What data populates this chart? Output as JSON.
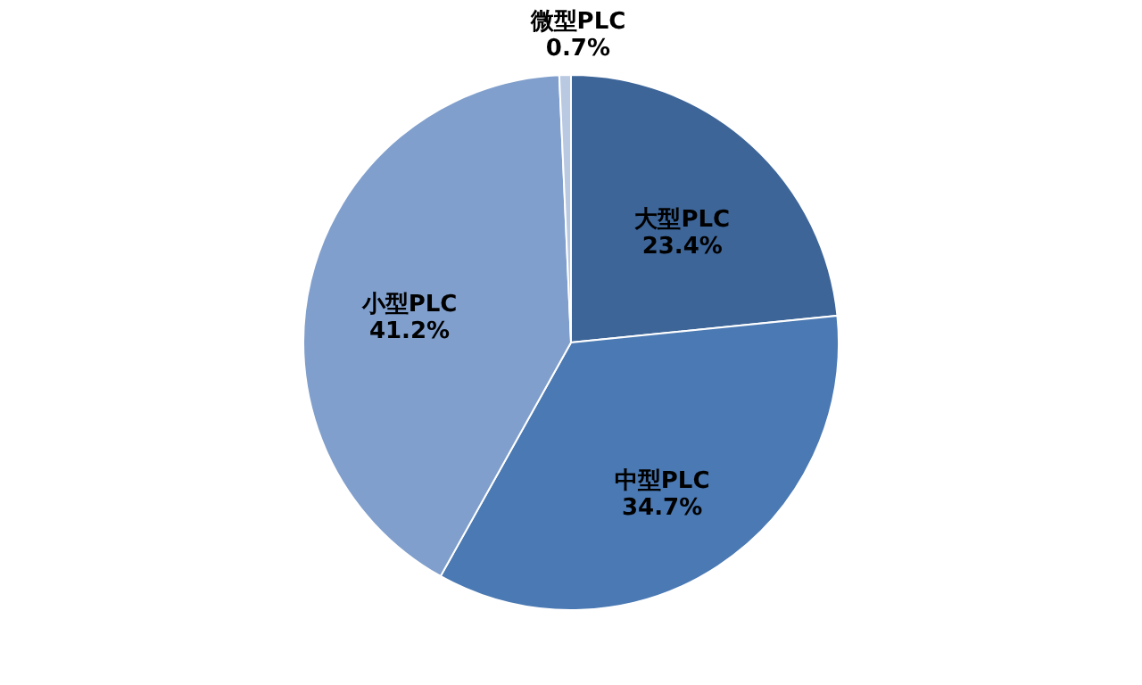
{
  "chart_data": {
    "type": "pie",
    "categories": [
      "大型PLC",
      "中型PLC",
      "小型PLC",
      "微型PLC"
    ],
    "values": [
      23.4,
      34.7,
      41.2,
      0.7
    ],
    "value_labels": [
      "23.4%",
      "34.7%",
      "41.2%",
      "0.7%"
    ],
    "colors": [
      "#3d6598",
      "#4a79b3",
      "#809fcc",
      "#b9c9e1"
    ]
  }
}
